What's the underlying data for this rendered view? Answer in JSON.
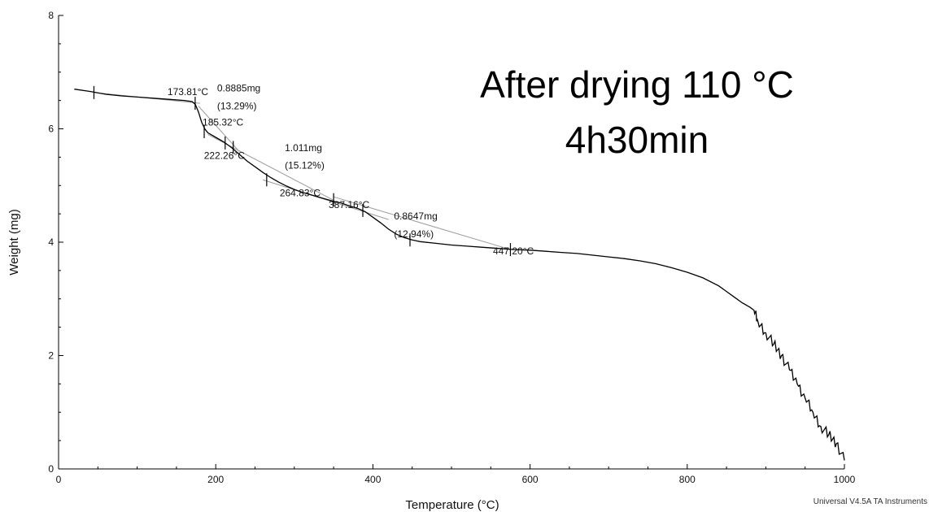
{
  "chart_data": {
    "type": "line",
    "xlabel": "Temperature (°C)",
    "ylabel": "Weight (mg)",
    "xlim": [
      0,
      1000
    ],
    "ylim": [
      0,
      8
    ],
    "x_ticks": [
      0,
      200,
      400,
      600,
      800,
      1000
    ],
    "y_ticks": [
      0,
      2,
      4,
      6,
      8
    ],
    "grid": false,
    "series": [
      {
        "x": [
          20,
          40,
          60,
          80,
          100,
          120,
          140,
          160,
          170,
          174,
          178,
          182,
          186,
          190,
          200,
          210,
          220,
          230,
          240,
          250,
          260,
          270,
          280,
          290,
          300,
          310,
          320,
          330,
          340,
          350,
          360,
          370,
          380,
          390,
          400,
          410,
          420,
          430,
          440,
          450,
          460,
          480,
          500,
          520,
          540,
          560,
          580,
          600,
          620,
          640,
          660,
          680,
          700,
          720,
          740,
          760,
          780,
          800,
          820,
          840,
          860,
          870,
          880,
          885,
          890,
          900,
          910,
          920,
          930,
          940,
          950,
          960,
          970,
          980,
          990,
          1000
        ],
        "y": [
          6.7,
          6.66,
          6.61,
          6.58,
          6.56,
          6.54,
          6.52,
          6.5,
          6.48,
          6.43,
          6.3,
          6.12,
          6.0,
          5.93,
          5.85,
          5.77,
          5.67,
          5.55,
          5.43,
          5.33,
          5.23,
          5.14,
          5.06,
          4.99,
          4.93,
          4.88,
          4.84,
          4.8,
          4.76,
          4.72,
          4.69,
          4.64,
          4.6,
          4.54,
          4.44,
          4.34,
          4.23,
          4.14,
          4.08,
          4.04,
          4.01,
          3.98,
          3.95,
          3.93,
          3.91,
          3.89,
          3.87,
          3.86,
          3.84,
          3.82,
          3.8,
          3.77,
          3.74,
          3.71,
          3.67,
          3.62,
          3.55,
          3.47,
          3.37,
          3.23,
          3.03,
          2.93,
          2.85,
          2.8,
          2.6,
          2.4,
          2.2,
          2.0,
          1.75,
          1.5,
          1.25,
          1.0,
          0.75,
          0.6,
          0.45,
          0.15
        ]
      }
    ],
    "annotations": [
      {
        "text": "173.81°C",
        "x": 173.81,
        "y": 6.45
      },
      {
        "text": "0.8885mg",
        "x": 210,
        "y": 6.6
      },
      {
        "text": "(13.29%)",
        "x": 210,
        "y": 6.43
      },
      {
        "text": "185.32°C",
        "x": 185.32,
        "y": 6.0
      },
      {
        "text": "1.011mg",
        "x": 290,
        "y": 5.55
      },
      {
        "text": "(15.12%)",
        "x": 290,
        "y": 5.38
      },
      {
        "text": "222.26°C",
        "x": 222.26,
        "y": 5.67
      },
      {
        "text": "387.16°C",
        "x": 387.16,
        "y": 4.56
      },
      {
        "text": "264.83°C",
        "x": 264.83,
        "y": 5.1
      },
      {
        "text": "0.8647mg",
        "x": 430,
        "y": 4.4
      },
      {
        "text": "(12.94%)",
        "x": 430,
        "y": 4.23
      },
      {
        "text": "447.20°C",
        "x": 447.2,
        "y": 4.04
      }
    ],
    "tangents": [
      [
        [
          45,
          6.64
        ],
        [
          180,
          6.45
        ]
      ],
      [
        [
          178,
          6.4
        ],
        [
          230,
          5.6
        ]
      ],
      [
        [
          190,
          5.9
        ],
        [
          350,
          4.74
        ]
      ],
      [
        [
          260,
          5.1
        ],
        [
          420,
          4.4
        ]
      ],
      [
        [
          350,
          4.8
        ],
        [
          575,
          3.87
        ]
      ]
    ],
    "markers": [
      {
        "x": 45,
        "y": 6.64
      },
      {
        "x": 173.81,
        "y": 6.45
      },
      {
        "x": 185.32,
        "y": 5.95
      },
      {
        "x": 212,
        "y": 5.75
      },
      {
        "x": 222.26,
        "y": 5.67
      },
      {
        "x": 264.83,
        "y": 5.1
      },
      {
        "x": 350,
        "y": 4.75
      },
      {
        "x": 387.16,
        "y": 4.56
      },
      {
        "x": 447.2,
        "y": 4.04
      },
      {
        "x": 575,
        "y": 3.87
      }
    ]
  },
  "overlay": {
    "line1": "After drying 110 °C",
    "line2": "4h30min"
  },
  "footer": "Universal V4.5A TA Instruments"
}
